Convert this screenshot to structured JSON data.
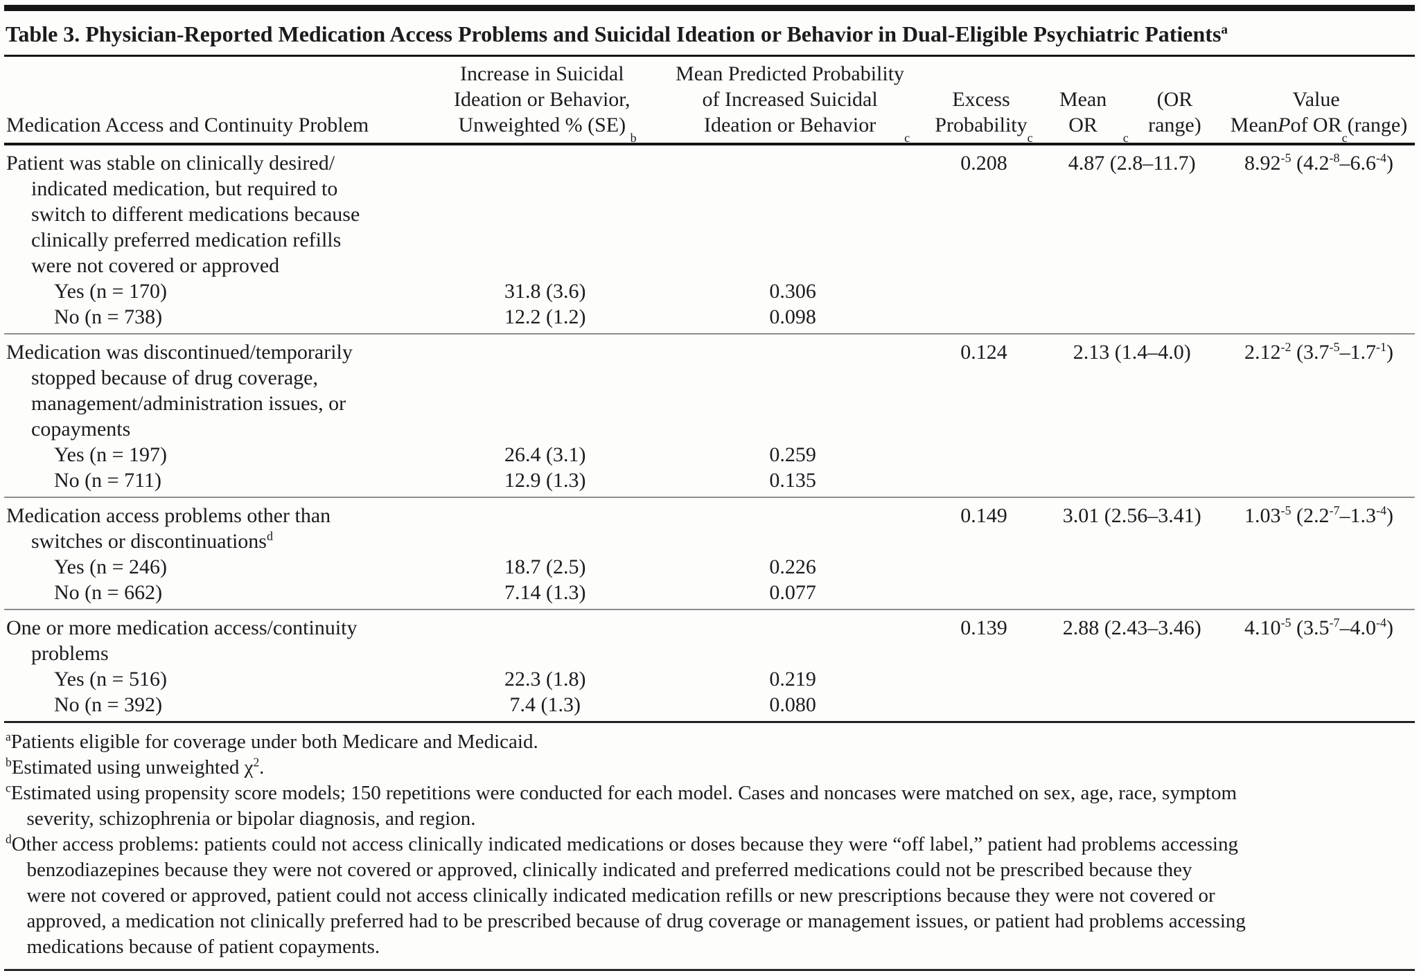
{
  "page": {
    "background": "#fdfdfc",
    "text_color": "#1b1b1b",
    "rule_color": "#151515"
  },
  "table": {
    "title": "Table 3. Physician-Reported Medication Access Problems and Suicidal Ideation or Behavior in Dual-Eligible Psychiatric Patients^{a}",
    "headers": {
      "problem": "Medication Access and Continuity Problem",
      "unweighted": "Increase in Suicidal\nIdeation or Behavior,\nUnweighted % (SE)^{b}",
      "predicted": "Mean Predicted Probability\nof Increased Suicidal\nIdeation or Behavior^{c}",
      "excess": "Excess\nProbability^{c}",
      "mean_or": "Mean OR^{c}\n(OR range)",
      "mean_p": "Mean *P* Value\nof OR^{c} (range)"
    },
    "groups": [
      {
        "label": "Patient was stable on clinically desired/\nindicated medication, but required to\nswitch to different medications because\nclinically preferred medication refills\nwere not covered or approved",
        "excess": "0.208",
        "mean_or": "4.87 (2.8–11.7)",
        "mean_p": "8.92^{-5} (4.2^{-8}–6.6^{-4})",
        "rows": [
          {
            "label": "Yes (n = 170)",
            "unweighted": "31.8 (3.6)",
            "predicted": "0.306"
          },
          {
            "label": "No (n = 738)",
            "unweighted": "12.2 (1.2)",
            "predicted": "0.098"
          }
        ]
      },
      {
        "label": "Medication was discontinued/temporarily\nstopped because of drug coverage,\nmanagement/administration issues, or\ncopayments",
        "excess": "0.124",
        "mean_or": "2.13 (1.4–4.0)",
        "mean_p": "2.12^{-2} (3.7^{-5}–1.7^{-1})",
        "rows": [
          {
            "label": "Yes (n = 197)",
            "unweighted": "26.4 (3.1)",
            "predicted": "0.259"
          },
          {
            "label": "No (n = 711)",
            "unweighted": "12.9 (1.3)",
            "predicted": "0.135"
          }
        ]
      },
      {
        "label": "Medication access problems other than\nswitches or discontinuations^{d}",
        "excess": "0.149",
        "mean_or": "3.01 (2.56–3.41)",
        "mean_p": "1.03^{-5} (2.2^{-7}–1.3^{-4})",
        "rows": [
          {
            "label": "Yes (n = 246)",
            "unweighted": "18.7 (2.5)",
            "predicted": "0.226"
          },
          {
            "label": "No (n = 662)",
            "unweighted": "7.14 (1.3)",
            "predicted": "0.077"
          }
        ]
      },
      {
        "label": "One or more medication access/continuity\nproblems",
        "excess": "0.139",
        "mean_or": "2.88 (2.43–3.46)",
        "mean_p": "4.10^{-5} (3.5^{-7}–4.0^{-4})",
        "rows": [
          {
            "label": "Yes (n = 516)",
            "unweighted": "22.3 (1.8)",
            "predicted": "0.219"
          },
          {
            "label": "No (n = 392)",
            "unweighted": "7.4 (1.3)",
            "predicted": "0.080"
          }
        ]
      }
    ],
    "footnotes": [
      "^{a}Patients eligible for coverage under both Medicare and Medicaid.",
      "^{b}Estimated using unweighted χ^{2}.",
      "^{c}Estimated using propensity score models; 150 repetitions were conducted for each model. Cases and noncases were matched on sex, age, race, symptom\nseverity, schizophrenia or bipolar diagnosis, and region.",
      "^{d}Other access problems: patients could not access clinically indicated medications or doses because they were “off label,” patient had problems accessing\nbenzodiazepines because they were not covered or approved, clinically indicated and preferred medications could not be prescribed because they\nwere not covered or approved, patient could not access clinically indicated medication refills or new prescriptions because they were not covered or\napproved, a medication not clinically preferred had to be prescribed because of drug coverage or management issues, or patient had problems accessing\nmedications because of patient copayments."
    ]
  }
}
